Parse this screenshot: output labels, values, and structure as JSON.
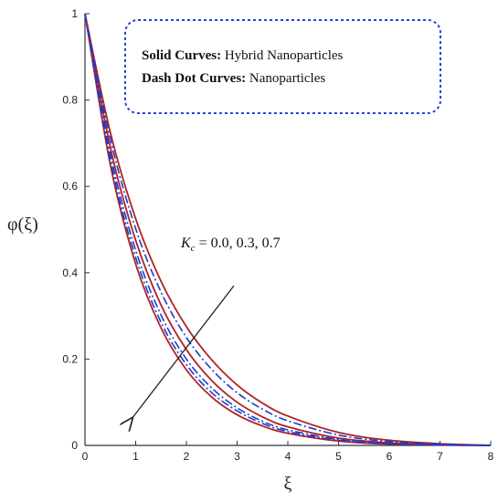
{
  "chart_data": {
    "type": "line",
    "xlabel": "ξ",
    "ylabel": "φ(ξ)",
    "xlim": [
      0,
      8
    ],
    "ylim": [
      0,
      1
    ],
    "xticks": [
      "0",
      "1",
      "2",
      "3",
      "4",
      "5",
      "6",
      "7",
      "8"
    ],
    "yticks": [
      "0",
      "0.2",
      "0.4",
      "0.6",
      "0.8",
      "1"
    ],
    "grid": false,
    "legend": {
      "position": "top-right",
      "line1_bold": "Solid Curves:",
      "line1_text": " Hybrid Nanoparticles",
      "line2_bold": "Dash Dot Curves:",
      "line2_text": " Nanoparticles"
    },
    "annotation": {
      "prefix": "K",
      "subscript": "c",
      "text": " = 0.0, 0.3, 0.7"
    },
    "series": [
      {
        "style": "solid",
        "color": "#b22222",
        "x": [
          0,
          0.5,
          1,
          1.5,
          2,
          2.5,
          3,
          3.5,
          4,
          5,
          6,
          7,
          8
        ],
        "y": [
          1.0,
          0.725,
          0.525,
          0.38,
          0.275,
          0.198,
          0.14,
          0.098,
          0.068,
          0.03,
          0.012,
          0.004,
          0.0
        ]
      },
      {
        "style": "solid",
        "color": "#b22222",
        "x": [
          0,
          0.5,
          1,
          1.5,
          2,
          2.5,
          3,
          3.5,
          4,
          5,
          6,
          7,
          8
        ],
        "y": [
          1.0,
          0.69,
          0.475,
          0.325,
          0.222,
          0.15,
          0.1,
          0.066,
          0.043,
          0.017,
          0.006,
          0.002,
          0.0
        ]
      },
      {
        "style": "solid",
        "color": "#b22222",
        "x": [
          0,
          0.5,
          1,
          1.5,
          2,
          2.5,
          3,
          3.5,
          4,
          5,
          6,
          7,
          8
        ],
        "y": [
          1.0,
          0.65,
          0.42,
          0.272,
          0.175,
          0.112,
          0.071,
          0.045,
          0.028,
          0.01,
          0.003,
          0.001,
          0.0
        ]
      },
      {
        "style": "dashdot",
        "color": "#1a3ccc",
        "x": [
          0,
          0.5,
          1,
          1.5,
          2,
          2.5,
          3,
          3.5,
          4,
          5,
          6,
          7,
          8
        ],
        "y": [
          1.0,
          0.71,
          0.502,
          0.355,
          0.25,
          0.176,
          0.122,
          0.084,
          0.057,
          0.024,
          0.009,
          0.003,
          0.0
        ]
      },
      {
        "style": "dashdot",
        "color": "#1a3ccc",
        "x": [
          0,
          0.5,
          1,
          1.5,
          2,
          2.5,
          3,
          3.5,
          4,
          5,
          6,
          7,
          8
        ],
        "y": [
          1.0,
          0.675,
          0.452,
          0.302,
          0.2,
          0.133,
          0.087,
          0.056,
          0.036,
          0.014,
          0.005,
          0.0015,
          0.0
        ]
      },
      {
        "style": "dashdot",
        "color": "#1a3ccc",
        "x": [
          0,
          0.5,
          1,
          1.5,
          2,
          2.5,
          3,
          3.5,
          4,
          5,
          6,
          7,
          8
        ],
        "y": [
          1.0,
          0.66,
          0.435,
          0.285,
          0.187,
          0.122,
          0.08,
          0.051,
          0.032,
          0.012,
          0.004,
          0.001,
          0.0
        ]
      }
    ]
  }
}
